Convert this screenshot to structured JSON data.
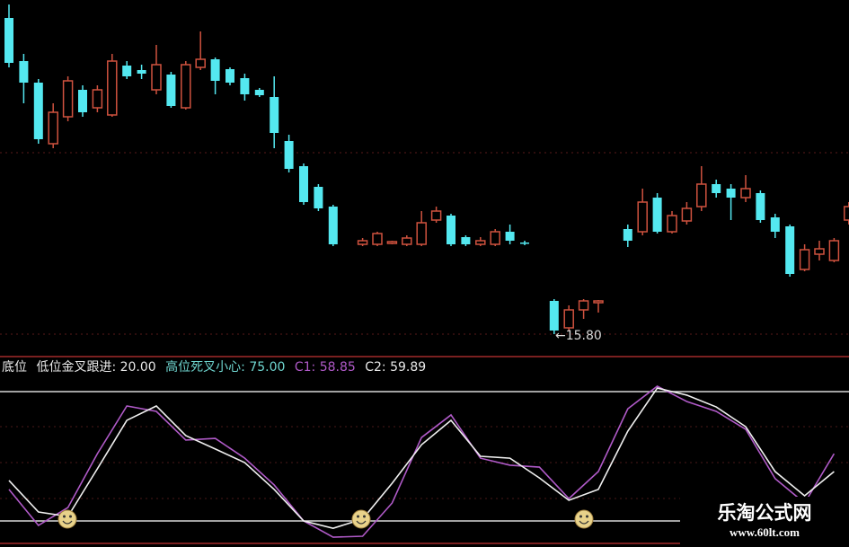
{
  "chart_data": [
    {
      "type": "candlestick",
      "note_label": "←15.80",
      "colors": {
        "up": "#d0523f",
        "down": "#54e8f0"
      },
      "candles": [
        [
          22.84,
          21.84,
          23.14,
          21.74
        ],
        [
          21.88,
          21.4,
          22.04,
          20.94
        ],
        [
          21.4,
          20.14,
          21.48,
          20.04
        ],
        [
          20.04,
          20.74,
          20.94,
          19.94
        ],
        [
          20.64,
          21.44,
          21.54,
          20.54
        ],
        [
          21.24,
          20.74,
          21.34,
          20.64
        ],
        [
          20.84,
          21.24,
          21.34,
          20.74
        ],
        [
          20.68,
          21.88,
          22.04,
          20.64
        ],
        [
          21.78,
          21.54,
          21.88,
          21.48
        ],
        [
          21.68,
          21.6,
          21.8,
          21.48
        ],
        [
          21.24,
          21.8,
          22.24,
          21.14
        ],
        [
          21.58,
          20.88,
          21.64,
          20.84
        ],
        [
          20.84,
          21.8,
          21.88,
          20.8
        ],
        [
          21.74,
          21.92,
          22.54,
          21.68
        ],
        [
          21.92,
          21.44,
          21.96,
          21.14
        ],
        [
          21.7,
          21.4,
          21.74,
          21.34
        ],
        [
          21.5,
          21.14,
          21.6,
          21.0
        ],
        [
          21.24,
          21.12,
          21.28,
          21.08
        ],
        [
          21.08,
          20.28,
          21.54,
          19.94
        ],
        [
          20.1,
          19.48,
          20.24,
          19.4
        ],
        [
          19.54,
          18.74,
          19.6,
          18.68
        ],
        [
          19.08,
          18.6,
          19.14,
          18.54
        ],
        [
          18.64,
          17.8,
          18.68,
          17.76
        ],
        null,
        [
          17.8,
          17.88,
          17.94,
          17.76
        ],
        [
          17.8,
          18.04,
          18.08,
          17.76
        ],
        [
          17.82,
          17.86,
          17.88,
          17.8
        ],
        [
          17.8,
          17.94,
          18.0,
          17.76
        ],
        [
          17.8,
          18.28,
          18.54,
          17.76
        ],
        [
          18.34,
          18.54,
          18.64,
          18.28
        ],
        [
          18.44,
          17.8,
          18.48,
          17.76
        ],
        [
          17.96,
          17.8,
          18.0,
          17.76
        ],
        [
          17.8,
          17.88,
          17.96,
          17.76
        ],
        [
          17.8,
          18.08,
          18.14,
          17.76
        ],
        [
          18.08,
          17.88,
          18.24,
          17.8
        ],
        [
          17.84,
          17.82,
          17.88,
          17.78
        ],
        null,
        [
          16.54,
          15.88,
          16.58,
          15.8
        ],
        [
          15.94,
          16.34,
          16.44,
          15.88
        ],
        [
          16.34,
          16.54,
          16.58,
          16.14
        ],
        [
          16.5,
          16.54,
          16.56,
          16.28
        ],
        null,
        [
          18.14,
          17.88,
          18.24,
          17.74
        ],
        [
          18.08,
          18.74,
          19.04,
          18.0
        ],
        [
          18.84,
          18.08,
          18.94,
          18.04
        ],
        [
          18.08,
          18.44,
          18.54,
          18.04
        ],
        [
          18.32,
          18.6,
          18.74,
          18.24
        ],
        [
          18.64,
          19.14,
          19.54,
          18.54
        ],
        [
          19.14,
          18.94,
          19.24,
          18.84
        ],
        [
          19.04,
          18.84,
          19.14,
          18.34
        ],
        [
          18.84,
          19.04,
          19.34,
          18.74
        ],
        [
          18.94,
          18.34,
          19.0,
          18.28
        ],
        [
          18.4,
          18.08,
          18.48,
          17.94
        ],
        [
          18.2,
          17.14,
          18.24,
          17.08
        ],
        [
          17.24,
          17.68,
          17.8,
          17.2
        ],
        [
          17.58,
          17.7,
          17.88,
          17.44
        ],
        [
          17.44,
          17.88,
          17.94,
          17.4
        ],
        [
          18.34,
          18.64,
          18.74,
          18.24
        ]
      ]
    },
    {
      "type": "line",
      "legend": {
        "prefix": "底位",
        "low_label": "低位金叉跟进: 20.00",
        "high_label": "高位死叉小心: 75.00",
        "c1_label": "C1: 58.85",
        "c2_label": "C2: 59.89"
      },
      "levels": [
        20,
        75
      ],
      "series": [
        {
          "name": "C1",
          "color": "#b05ac8",
          "values": [
            33.4,
            18.1,
            25.7,
            48.6,
            68.9,
            66.6,
            54.4,
            55.1,
            46.7,
            35.3,
            20.0,
            13.1,
            13.5,
            27.6,
            55.5,
            65.1,
            46.7,
            43.7,
            42.9,
            29.5,
            41.0,
            67.7,
            77.3,
            70.8,
            66.6,
            59.0,
            38.0,
            27.6,
            48.6
          ]
        },
        {
          "name": "C2",
          "color": "#f0f0f0",
          "values": [
            37.2,
            23.8,
            21.9,
            42.2,
            62.8,
            68.9,
            56.3,
            50.6,
            44.8,
            33.4,
            20.0,
            16.9,
            20.8,
            36.0,
            52.4,
            62.8,
            47.5,
            46.7,
            38.3,
            28.8,
            33.4,
            58.2,
            76.5,
            73.5,
            68.5,
            60.1,
            41.0,
            30.7,
            41.0
          ]
        }
      ],
      "signal_icon": "smiley-icon",
      "signal_points": [
        2,
        24,
        39
      ]
    }
  ],
  "watermark": {
    "name": "乐淘公式网",
    "url": "www.60lt.com"
  }
}
